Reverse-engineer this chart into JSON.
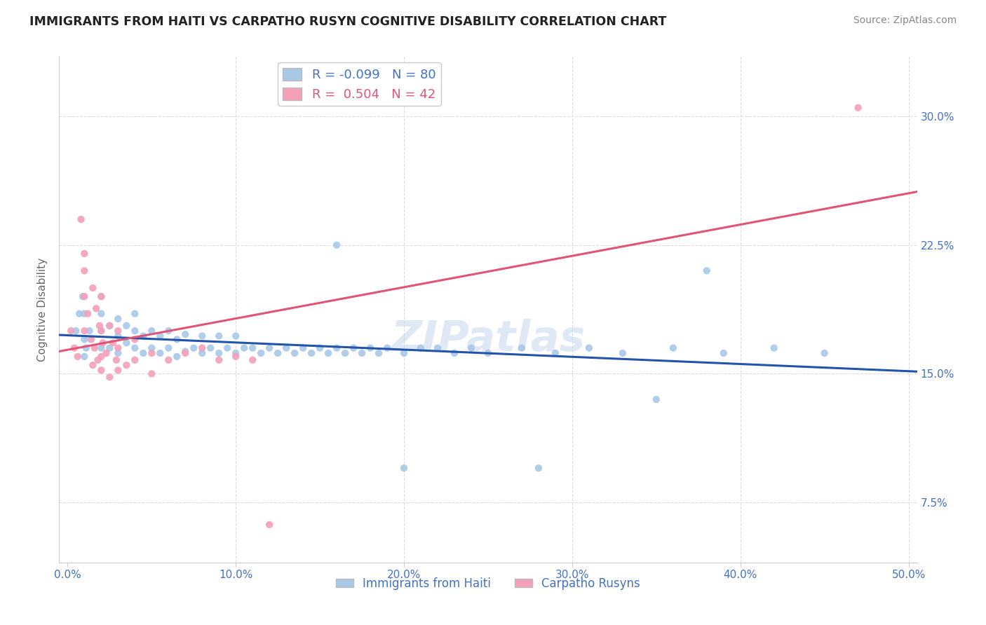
{
  "title": "IMMIGRANTS FROM HAITI VS CARPATHO RUSYN COGNITIVE DISABILITY CORRELATION CHART",
  "source": "Source: ZipAtlas.com",
  "ylabel": "Cognitive Disability",
  "ytick_labels": [
    "7.5%",
    "15.0%",
    "22.5%",
    "30.0%"
  ],
  "ytick_values": [
    0.075,
    0.15,
    0.225,
    0.3
  ],
  "xtick_values": [
    0.0,
    0.1,
    0.2,
    0.3,
    0.4,
    0.5
  ],
  "xlim": [
    -0.005,
    0.505
  ],
  "ylim": [
    0.04,
    0.335
  ],
  "haiti_r": -0.099,
  "haiti_n": 80,
  "rusyn_r": 0.504,
  "rusyn_n": 42,
  "haiti_color": "#a8c8e8",
  "rusyn_color": "#f4a0b8",
  "haiti_line_color": "#2255aa",
  "rusyn_line_color": "#e05575",
  "background_color": "#ffffff",
  "grid_color": "#dddddd",
  "watermark": "ZIPatlas",
  "haiti_x": [
    0.005,
    0.007,
    0.009,
    0.011,
    0.013,
    0.01,
    0.01,
    0.01,
    0.02,
    0.02,
    0.02,
    0.02,
    0.025,
    0.025,
    0.03,
    0.03,
    0.03,
    0.035,
    0.035,
    0.04,
    0.04,
    0.04,
    0.045,
    0.045,
    0.05,
    0.05,
    0.055,
    0.055,
    0.06,
    0.06,
    0.065,
    0.065,
    0.07,
    0.07,
    0.075,
    0.08,
    0.08,
    0.085,
    0.09,
    0.09,
    0.095,
    0.1,
    0.1,
    0.105,
    0.11,
    0.115,
    0.12,
    0.125,
    0.13,
    0.135,
    0.14,
    0.145,
    0.15,
    0.155,
    0.16,
    0.165,
    0.17,
    0.175,
    0.18,
    0.185,
    0.19,
    0.2,
    0.21,
    0.22,
    0.23,
    0.24,
    0.25,
    0.27,
    0.29,
    0.31,
    0.33,
    0.36,
    0.39,
    0.42,
    0.45,
    0.16,
    0.2,
    0.28,
    0.35,
    0.38
  ],
  "haiti_y": [
    0.175,
    0.185,
    0.195,
    0.165,
    0.175,
    0.16,
    0.17,
    0.185,
    0.165,
    0.175,
    0.185,
    0.195,
    0.165,
    0.178,
    0.162,
    0.172,
    0.182,
    0.168,
    0.178,
    0.165,
    0.175,
    0.185,
    0.162,
    0.172,
    0.165,
    0.175,
    0.162,
    0.172,
    0.165,
    0.175,
    0.16,
    0.17,
    0.163,
    0.173,
    0.165,
    0.162,
    0.172,
    0.165,
    0.162,
    0.172,
    0.165,
    0.162,
    0.172,
    0.165,
    0.165,
    0.162,
    0.165,
    0.162,
    0.165,
    0.162,
    0.165,
    0.162,
    0.165,
    0.162,
    0.165,
    0.162,
    0.165,
    0.162,
    0.165,
    0.162,
    0.165,
    0.162,
    0.165,
    0.165,
    0.162,
    0.165,
    0.162,
    0.165,
    0.162,
    0.165,
    0.162,
    0.165,
    0.162,
    0.165,
    0.162,
    0.225,
    0.095,
    0.095,
    0.135,
    0.21
  ],
  "rusyn_x": [
    0.002,
    0.004,
    0.006,
    0.008,
    0.01,
    0.01,
    0.01,
    0.012,
    0.014,
    0.016,
    0.018,
    0.02,
    0.015,
    0.017,
    0.019,
    0.021,
    0.023,
    0.025,
    0.027,
    0.029,
    0.02,
    0.02,
    0.02,
    0.03,
    0.03,
    0.03,
    0.04,
    0.04,
    0.05,
    0.05,
    0.06,
    0.07,
    0.08,
    0.09,
    0.1,
    0.11,
    0.12,
    0.01,
    0.015,
    0.025,
    0.035,
    0.47
  ],
  "rusyn_y": [
    0.175,
    0.165,
    0.16,
    0.24,
    0.21,
    0.195,
    0.175,
    0.185,
    0.17,
    0.165,
    0.158,
    0.152,
    0.2,
    0.188,
    0.178,
    0.168,
    0.162,
    0.178,
    0.168,
    0.158,
    0.195,
    0.175,
    0.16,
    0.175,
    0.165,
    0.152,
    0.17,
    0.158,
    0.162,
    0.15,
    0.158,
    0.162,
    0.165,
    0.158,
    0.16,
    0.158,
    0.062,
    0.22,
    0.155,
    0.148,
    0.155,
    0.305
  ]
}
